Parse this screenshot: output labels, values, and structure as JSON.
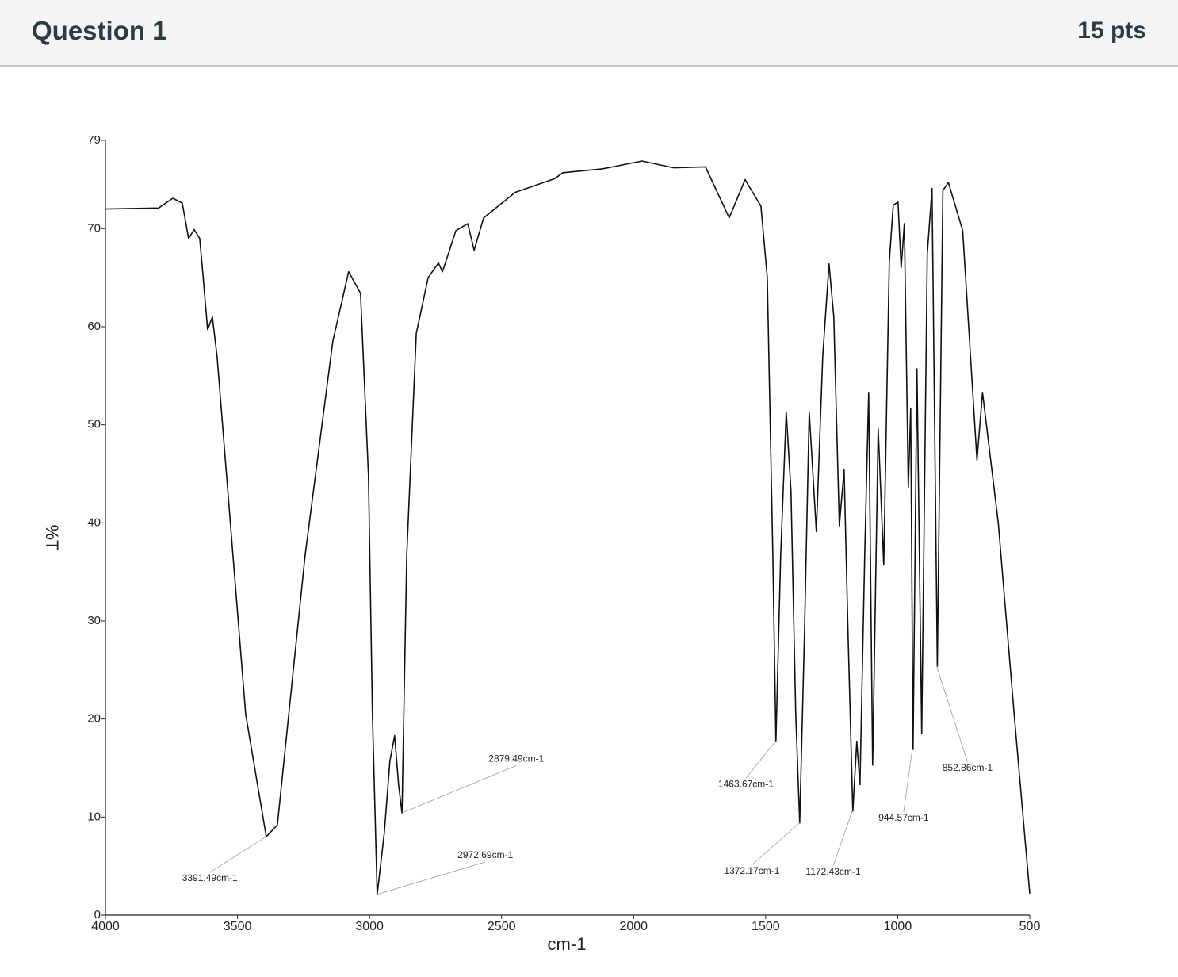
{
  "header": {
    "title": "Question 1",
    "points": "15 pts"
  },
  "chart_data": {
    "type": "line",
    "xlabel": "cm-1",
    "ylabel": "%T",
    "xlim": [
      4000,
      500
    ],
    "ylim": [
      0,
      79
    ],
    "xticks": [
      4000,
      3500,
      3000,
      2500,
      2000,
      1500,
      1000,
      500
    ],
    "yticks": [
      0,
      10,
      20,
      30,
      40,
      50,
      60,
      70,
      79
    ],
    "color": "#111111",
    "x": [
      4000,
      3799,
      3745,
      3709,
      3685,
      3664,
      3643,
      3631,
      3613,
      3595,
      3577,
      3529,
      3469,
      3391,
      3349,
      3244,
      3139,
      3079,
      3034,
      3004,
      2989,
      2971,
      2944,
      2923,
      2905,
      2890,
      2877,
      2859,
      2823,
      2778,
      2739,
      2724,
      2673,
      2628,
      2604,
      2568,
      2448,
      2298,
      2268,
      2118,
      1968,
      1848,
      1728,
      1638,
      1578,
      1518,
      1494,
      1473,
      1461,
      1443,
      1422,
      1404,
      1386,
      1371,
      1353,
      1335,
      1308,
      1284,
      1260,
      1242,
      1221,
      1203,
      1188,
      1170,
      1155,
      1143,
      1125,
      1110,
      1095,
      1074,
      1053,
      1032,
      1017,
      999,
      987,
      975,
      960,
      951,
      942,
      927,
      909,
      888,
      870,
      850,
      829,
      808,
      754,
      700,
      679,
      619,
      559,
      500
    ],
    "values": [
      72.0,
      72.1,
      73.1,
      72.6,
      69.0,
      69.9,
      69.0,
      65.4,
      59.7,
      61.0,
      56.9,
      40.7,
      20.5,
      8.0,
      9.2,
      36.7,
      58.5,
      65.6,
      63.4,
      44.8,
      20.5,
      2.1,
      8.4,
      15.7,
      18.3,
      13.3,
      10.4,
      36.7,
      59.3,
      65.0,
      66.5,
      65.6,
      69.8,
      70.5,
      67.8,
      71.1,
      73.7,
      75.1,
      75.7,
      76.1,
      76.9,
      76.2,
      76.3,
      71.1,
      75.0,
      72.3,
      65.0,
      36.7,
      17.7,
      36.7,
      51.3,
      43.2,
      20.5,
      9.4,
      28.6,
      51.3,
      39.1,
      56.9,
      66.4,
      61.0,
      39.7,
      45.4,
      28.6,
      10.6,
      17.7,
      13.3,
      36.7,
      53.3,
      15.3,
      49.6,
      35.7,
      66.6,
      72.4,
      72.7,
      66.0,
      70.5,
      43.6,
      51.7,
      16.9,
      55.7,
      18.5,
      67.4,
      74.1,
      25.4,
      73.9,
      74.7,
      69.8,
      46.4,
      53.3,
      39.9,
      20.5,
      2.2
    ],
    "annotations": [
      {
        "label": "3391.49cm-1",
        "x": 3391.49,
        "y": 8.0
      },
      {
        "label": "2879.49cm-1",
        "x": 2879.49,
        "y": 10.4
      },
      {
        "label": "2972.69cm-1",
        "x": 2972.69,
        "y": 2.1
      },
      {
        "label": "1463.67cm-1",
        "x": 1463.67,
        "y": 17.7
      },
      {
        "label": "1372.17cm-1",
        "x": 1372.17,
        "y": 9.4
      },
      {
        "label": "1172.43cm-1",
        "x": 1172.43,
        "y": 10.6
      },
      {
        "label": "944.57cm-1",
        "x": 944.57,
        "y": 16.9
      },
      {
        "label": "852.86cm-1",
        "x": 852.86,
        "y": 25.4
      }
    ]
  }
}
